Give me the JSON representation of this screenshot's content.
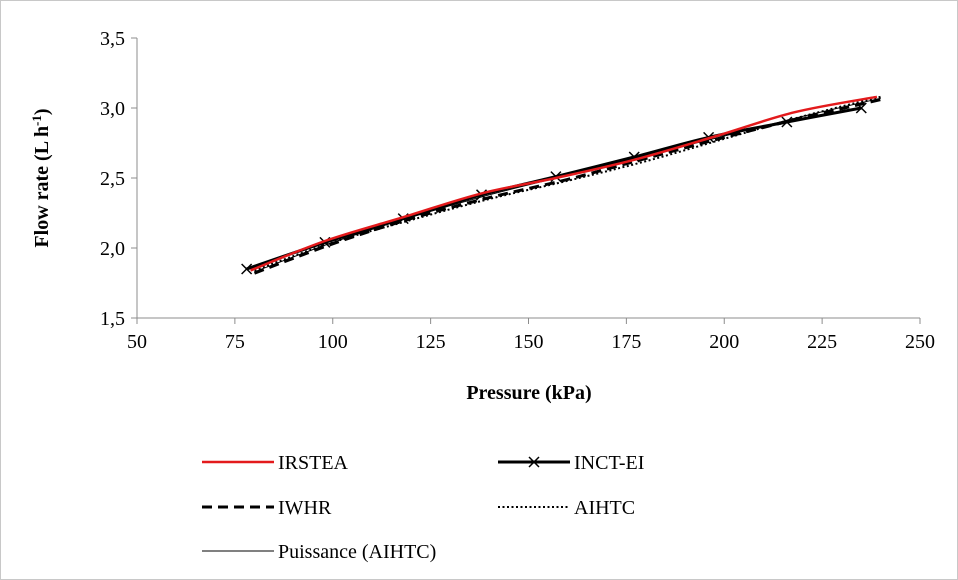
{
  "chart_data": {
    "type": "line",
    "title": "",
    "xlabel": "Pressure (kPa)",
    "ylabel": "Flow rate (L h-1)",
    "ylabel_parts": {
      "main": "Flow rate (L h",
      "sup": "-1",
      "close": ")"
    },
    "xlim": [
      50,
      250
    ],
    "ylim": [
      1.5,
      3.5
    ],
    "x_ticks": [
      50,
      75,
      100,
      125,
      150,
      175,
      200,
      225,
      250
    ],
    "y_ticks": [
      1.5,
      2.0,
      2.5,
      3.0,
      3.5
    ],
    "x_tick_labels": [
      "50",
      "75",
      "100",
      "125",
      "150",
      "175",
      "200",
      "225",
      "250"
    ],
    "y_tick_labels": [
      "1,5",
      "2,0",
      "2,5",
      "3,0",
      "3,5"
    ],
    "grid": false,
    "legend_position": "bottom",
    "series": [
      {
        "name": "IRSTEA",
        "color": "#e31a1c",
        "style": "solid",
        "marker": "none",
        "x": [
          79,
          98,
          118,
          138,
          157,
          177,
          198,
          218,
          239
        ],
        "y": [
          1.84,
          2.05,
          2.22,
          2.39,
          2.5,
          2.63,
          2.8,
          2.97,
          3.08
        ]
      },
      {
        "name": "INCT-EI",
        "color": "#000000",
        "style": "solid-thick",
        "marker": "x",
        "x": [
          78,
          98,
          118,
          138,
          157,
          177,
          196,
          216,
          235
        ],
        "y": [
          1.85,
          2.04,
          2.21,
          2.38,
          2.51,
          2.65,
          2.79,
          2.9,
          3.0
        ]
      },
      {
        "name": "IWHR",
        "color": "#000000",
        "style": "dashed",
        "marker": "none",
        "x": [
          80,
          100,
          120,
          140,
          160,
          180,
          200,
          220,
          240
        ],
        "y": [
          1.82,
          2.03,
          2.21,
          2.36,
          2.49,
          2.64,
          2.79,
          2.93,
          3.06
        ]
      },
      {
        "name": "AIHTC",
        "color": "#000000",
        "style": "dotted",
        "marker": "none",
        "x": [
          80,
          100,
          120,
          140,
          160,
          180,
          200,
          220,
          240
        ],
        "y": [
          1.84,
          2.04,
          2.2,
          2.35,
          2.48,
          2.62,
          2.78,
          2.94,
          3.08
        ]
      },
      {
        "name": "Puissance (AIHTC)",
        "color": "#000000",
        "style": "solid-thin",
        "marker": "none",
        "x": [
          80,
          100,
          120,
          140,
          160,
          180,
          200,
          220,
          240
        ],
        "y": [
          1.83,
          2.04,
          2.22,
          2.38,
          2.52,
          2.66,
          2.8,
          2.94,
          3.07
        ]
      }
    ]
  }
}
